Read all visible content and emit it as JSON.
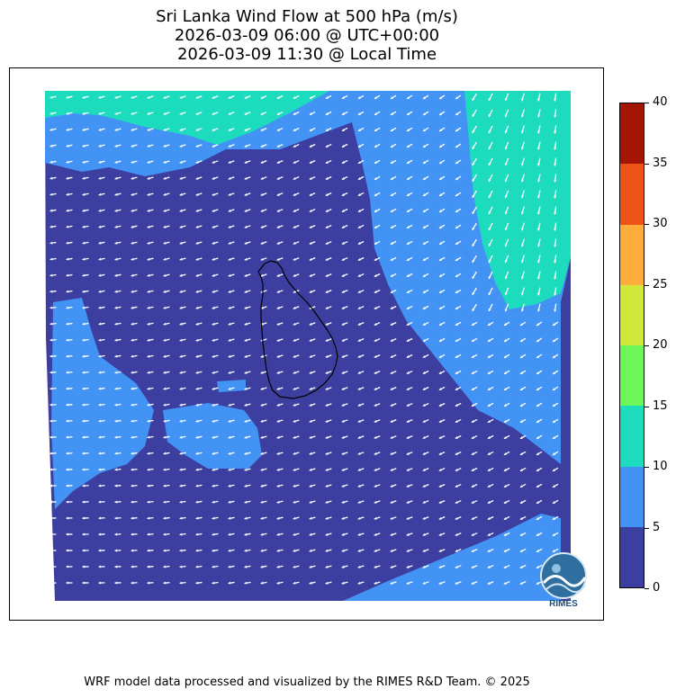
{
  "title": {
    "line1": "Sri Lanka Wind Flow at 500 hPa (m/s)",
    "line2": "2026-03-09 06:00 @ UTC+00:00",
    "line3": "2026-03-09 11:30 @ Local Time"
  },
  "colorbar": {
    "ticks": [
      "0",
      "5",
      "10",
      "15",
      "20",
      "25",
      "30",
      "35",
      "40"
    ],
    "colors": [
      "#3d3fa0",
      "#4393f5",
      "#1ddcbd",
      "#6ef55a",
      "#cfe83a",
      "#fcad3a",
      "#ed5316",
      "#a51506"
    ]
  },
  "map": {
    "zone_colors": {
      "calm": "#3d3fa0",
      "moderate": "#4393f5",
      "strong": "#1ddcbd"
    },
    "arrow_color": "#ffffff",
    "coast_color": "#000000"
  },
  "logo": {
    "text": "RIMES"
  },
  "footer": "WRF model data processed and visualized by the RIMES R&D Team. © 2025"
}
